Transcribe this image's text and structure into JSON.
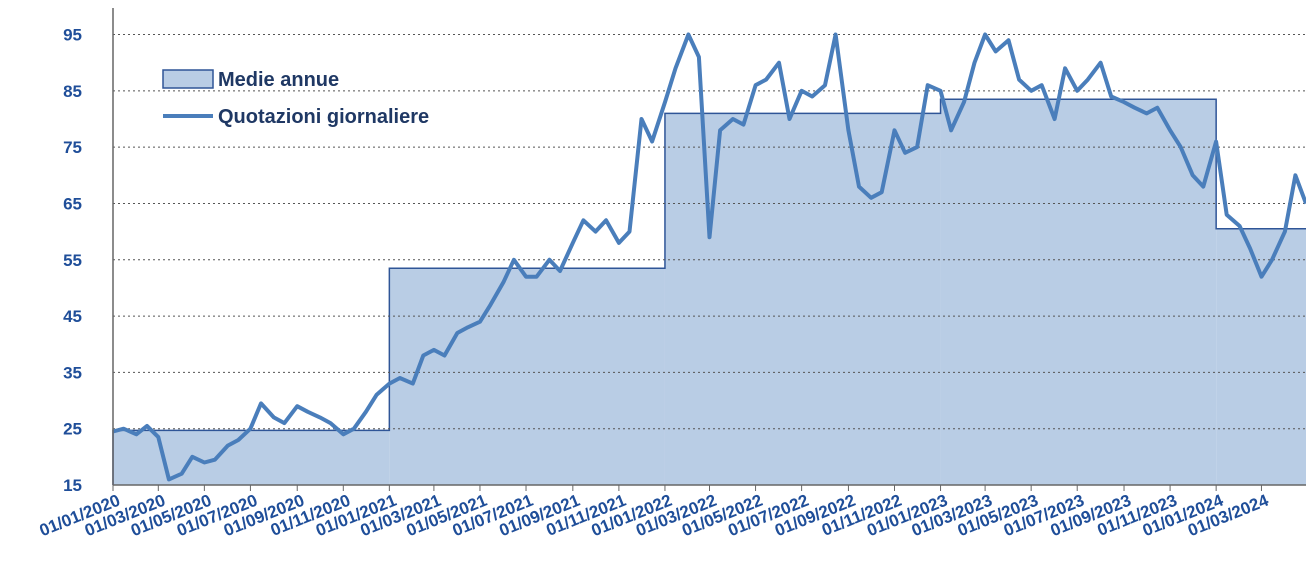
{
  "chart_data": {
    "type": "line",
    "xlim": [
      "01/01/2020",
      "29/04/2024"
    ],
    "xticks": [
      "01/01/2020",
      "01/03/2020",
      "01/05/2020",
      "01/07/2020",
      "01/09/2020",
      "01/11/2020",
      "01/01/2021",
      "01/03/2021",
      "01/05/2021",
      "01/07/2021",
      "01/09/2021",
      "01/11/2021",
      "01/01/2022",
      "01/03/2022",
      "01/05/2022",
      "01/07/2022",
      "01/09/2022",
      "01/11/2022",
      "01/01/2023",
      "01/03/2023",
      "01/05/2023",
      "01/07/2023",
      "01/09/2023",
      "01/11/2023",
      "01/01/2024",
      "01/03/2024"
    ],
    "ylim": [
      15,
      99
    ],
    "yticks": [
      15,
      25,
      35,
      45,
      55,
      65,
      75,
      85,
      95
    ],
    "grid": true,
    "series": [
      {
        "name": "Medie annue",
        "kind": "step-area",
        "color": "#b9cde5",
        "edge": "#2f5597",
        "x": [
          "01/01/2020",
          "01/01/2021",
          "01/01/2022",
          "01/01/2023",
          "01/01/2024"
        ],
        "values": [
          24.7,
          53.5,
          81.0,
          83.5,
          60.5
        ]
      },
      {
        "name": "Quotazioni giornaliere",
        "kind": "line",
        "color": "#4a7ebb",
        "x": [
          "01/01/2020",
          "15/01/2020",
          "01/02/2020",
          "15/02/2020",
          "01/03/2020",
          "15/03/2020",
          "01/04/2020",
          "15/04/2020",
          "01/05/2020",
          "15/05/2020",
          "01/06/2020",
          "15/06/2020",
          "01/07/2020",
          "15/07/2020",
          "01/08/2020",
          "15/08/2020",
          "01/09/2020",
          "15/09/2020",
          "01/10/2020",
          "15/10/2020",
          "01/11/2020",
          "15/11/2020",
          "01/12/2020",
          "15/12/2020",
          "01/01/2021",
          "15/01/2021",
          "01/02/2021",
          "15/02/2021",
          "01/03/2021",
          "15/03/2021",
          "01/04/2021",
          "15/04/2021",
          "01/05/2021",
          "15/05/2021",
          "01/06/2021",
          "15/06/2021",
          "01/07/2021",
          "15/07/2021",
          "01/08/2021",
          "15/08/2021",
          "01/09/2021",
          "15/09/2021",
          "01/10/2021",
          "15/10/2021",
          "01/11/2021",
          "15/11/2021",
          "01/12/2021",
          "15/12/2021",
          "01/01/2022",
          "15/01/2022",
          "01/02/2022",
          "15/02/2022",
          "01/03/2022",
          "15/03/2022",
          "01/04/2022",
          "15/04/2022",
          "01/05/2022",
          "15/05/2022",
          "01/06/2022",
          "15/06/2022",
          "01/07/2022",
          "15/07/2022",
          "01/08/2022",
          "15/08/2022",
          "01/09/2022",
          "15/09/2022",
          "01/10/2022",
          "15/10/2022",
          "01/11/2022",
          "15/11/2022",
          "01/12/2022",
          "15/12/2022",
          "01/01/2023",
          "15/01/2023",
          "01/02/2023",
          "15/02/2023",
          "01/03/2023",
          "15/03/2023",
          "01/04/2023",
          "15/04/2023",
          "01/05/2023",
          "15/05/2023",
          "01/06/2023",
          "15/06/2023",
          "01/07/2023",
          "15/07/2023",
          "01/08/2023",
          "15/08/2023",
          "01/09/2023",
          "15/09/2023",
          "01/10/2023",
          "15/10/2023",
          "01/11/2023",
          "15/11/2023",
          "01/12/2023",
          "15/12/2023",
          "01/01/2024",
          "15/01/2024",
          "01/02/2024",
          "15/02/2024",
          "01/03/2024",
          "15/03/2024",
          "01/04/2024",
          "15/04/2024",
          "29/04/2024"
        ],
        "values": [
          24.5,
          25,
          24,
          25.5,
          23.5,
          16,
          17,
          20,
          19,
          19.5,
          22,
          23,
          25,
          29.5,
          27,
          26,
          29,
          28,
          27,
          26,
          24,
          25,
          28,
          31,
          33,
          34,
          33,
          38,
          39,
          38,
          42,
          43,
          44,
          47,
          51,
          55,
          52,
          52,
          55,
          53,
          58,
          62,
          60,
          62,
          58,
          60,
          80,
          76,
          83,
          89,
          95,
          91,
          59,
          78,
          80,
          79,
          86,
          87,
          90,
          80,
          85,
          84,
          86,
          95,
          78,
          68,
          66,
          67,
          78,
          74,
          75,
          86,
          85,
          78,
          83,
          90,
          95,
          92,
          94,
          87,
          85,
          86,
          80,
          89,
          85,
          87,
          90,
          84,
          83,
          82,
          81,
          82,
          78,
          75,
          70,
          68,
          76,
          63,
          61,
          57,
          52,
          55,
          60,
          70,
          65
        ]
      }
    ]
  }
}
